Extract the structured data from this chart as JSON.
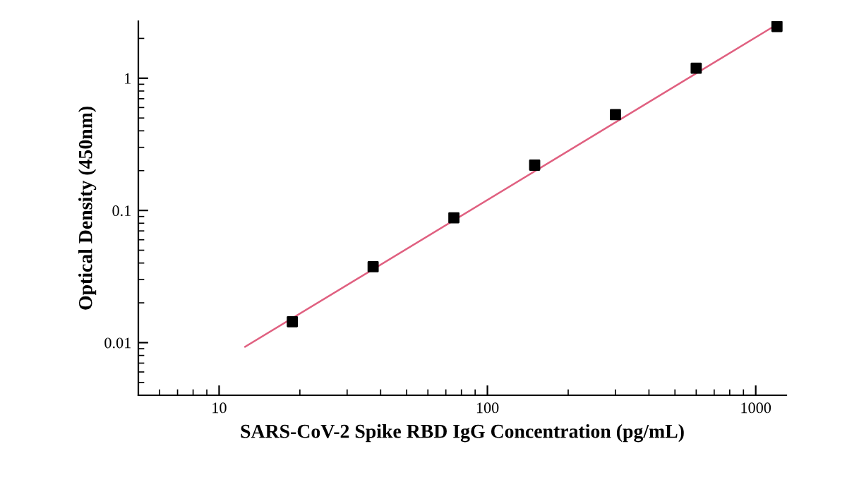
{
  "chart_data": {
    "type": "scatter",
    "xlabel": "SARS-CoV-2 Spike RBD IgG Concentration (pg/mL)",
    "ylabel": "Optical Density (450nm)",
    "log": "xy",
    "grid": false,
    "legend": false,
    "xlim": [
      5,
      1300
    ],
    "ylim": [
      0.004,
      2.7
    ],
    "xticks": [
      10,
      100,
      1000
    ],
    "yticks": [
      0.01,
      0.1,
      1
    ],
    "series": [
      {
        "color": "#000000",
        "marker": "square",
        "x": [
          18.75,
          37.5,
          75,
          150,
          300,
          600,
          1200
        ],
        "values": [
          0.0144,
          0.0375,
          0.088,
          0.22,
          0.53,
          1.19,
          2.46
        ]
      },
      {
        "type": "line",
        "color": "#e06080",
        "marker": "none",
        "line_style": "solid",
        "x": [
          12.5,
          1200
        ],
        "values": [
          0.0093,
          2.55
        ]
      }
    ]
  }
}
